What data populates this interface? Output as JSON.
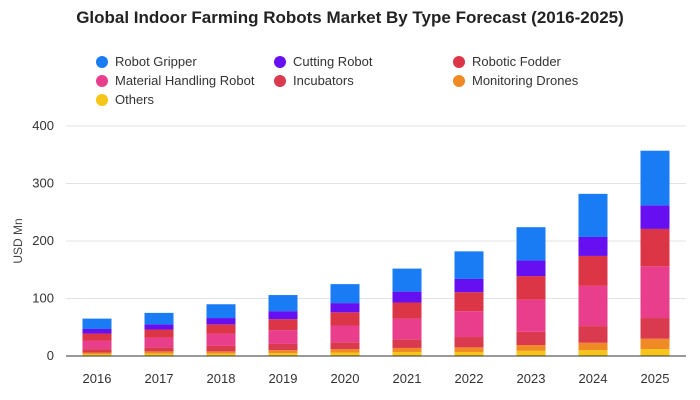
{
  "chart_data": {
    "type": "bar",
    "stacked": true,
    "title": "Global Indoor Farming Robots Market By Type Forecast (2016-2025)",
    "xlabel": "",
    "ylabel": "USD Mn",
    "categories": [
      "2016",
      "2017",
      "2018",
      "2019",
      "2020",
      "2021",
      "2022",
      "2023",
      "2024",
      "2025"
    ],
    "ylim": [
      0,
      400
    ],
    "yticks": [
      "0",
      "100",
      "200",
      "300",
      "400"
    ],
    "grid": true,
    "legend_position": "top",
    "series": [
      {
        "name": "Others",
        "color": "#f5c518",
        "values": [
          3,
          4,
          4,
          5,
          6,
          7,
          7,
          9,
          10,
          12
        ]
      },
      {
        "name": "Monitoring Drones",
        "color": "#f08a24",
        "values": [
          3,
          4,
          4,
          5,
          6,
          7,
          8,
          10,
          13,
          18
        ]
      },
      {
        "name": "Incubators",
        "color": "#d93a4e",
        "values": [
          6,
          7,
          10,
          11,
          12,
          15,
          18,
          23,
          29,
          36
        ]
      },
      {
        "name": "Material Handling Robot",
        "color": "#e83e8c",
        "values": [
          15,
          17,
          21,
          24,
          29,
          36,
          45,
          56,
          70,
          90
        ]
      },
      {
        "name": "Robotic Fodder",
        "color": "#dc3545",
        "values": [
          12,
          14,
          16,
          19,
          23,
          28,
          33,
          41,
          52,
          65
        ]
      },
      {
        "name": "Cutting Robot",
        "color": "#6610f2",
        "values": [
          8,
          9,
          11,
          14,
          16,
          19,
          23,
          27,
          33,
          41
        ]
      },
      {
        "name": "Robot Gripper",
        "color": "#1a7cf5",
        "values": [
          18,
          20,
          24,
          28,
          33,
          40,
          48,
          58,
          75,
          95
        ]
      }
    ]
  },
  "legend": [
    {
      "label": "Robot Gripper",
      "color": "#1a7cf5"
    },
    {
      "label": "Cutting Robot",
      "color": "#6610f2"
    },
    {
      "label": "Robotic Fodder",
      "color": "#dc3545"
    },
    {
      "label": "Material Handling Robot",
      "color": "#e83e8c"
    },
    {
      "label": "Incubators",
      "color": "#d93a4e"
    },
    {
      "label": "Monitoring Drones",
      "color": "#f08a24"
    },
    {
      "label": "Others",
      "color": "#f5c518"
    }
  ]
}
